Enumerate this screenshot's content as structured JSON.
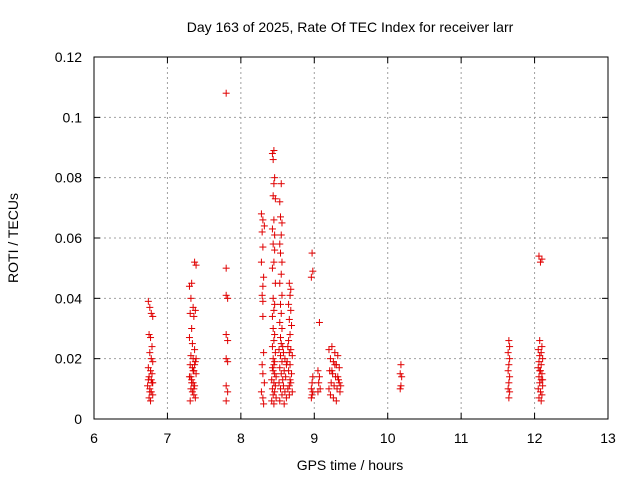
{
  "chart_data": {
    "type": "scatter",
    "title": "Day 163 of 2025, Rate Of TEC Index for receiver larr",
    "xlabel": "GPS time / hours",
    "ylabel": "ROTI / TECUs",
    "xlim": [
      6,
      13
    ],
    "ylim": [
      0,
      0.12
    ],
    "xticks": [
      6,
      7,
      8,
      9,
      10,
      11,
      12,
      13
    ],
    "xtick_labels": [
      "6",
      "7",
      "8",
      "9",
      "10",
      "11",
      "12",
      "13"
    ],
    "yticks": [
      0,
      0.02,
      0.04,
      0.06,
      0.08,
      0.1,
      0.12
    ],
    "ytick_labels": [
      "0",
      "0.02",
      "0.04",
      "0.06",
      "0.08",
      "0.1",
      "0.12"
    ],
    "grid": true,
    "marker": "+",
    "color": "#e00000",
    "series": [
      {
        "name": "ROTI",
        "points": [
          [
            6.74,
            0.039
          ],
          [
            6.76,
            0.037
          ],
          [
            6.78,
            0.035
          ],
          [
            6.8,
            0.034
          ],
          [
            6.75,
            0.028
          ],
          [
            6.77,
            0.027
          ],
          [
            6.79,
            0.024
          ],
          [
            6.76,
            0.022
          ],
          [
            6.78,
            0.02
          ],
          [
            6.8,
            0.019
          ],
          [
            6.74,
            0.017
          ],
          [
            6.77,
            0.016
          ],
          [
            6.79,
            0.015
          ],
          [
            6.75,
            0.014
          ],
          [
            6.78,
            0.013
          ],
          [
            6.8,
            0.012
          ],
          [
            6.73,
            0.011
          ],
          [
            6.76,
            0.01
          ],
          [
            6.78,
            0.009
          ],
          [
            6.8,
            0.008
          ],
          [
            6.75,
            0.007
          ],
          [
            6.77,
            0.006
          ],
          [
            6.79,
            0.012
          ],
          [
            6.74,
            0.013
          ],
          [
            6.76,
            0.009
          ],
          [
            7.3,
            0.044
          ],
          [
            7.33,
            0.045
          ],
          [
            7.37,
            0.052
          ],
          [
            7.39,
            0.051
          ],
          [
            7.32,
            0.04
          ],
          [
            7.35,
            0.037
          ],
          [
            7.38,
            0.036
          ],
          [
            7.31,
            0.035
          ],
          [
            7.36,
            0.034
          ],
          [
            7.33,
            0.03
          ],
          [
            7.3,
            0.027
          ],
          [
            7.34,
            0.025
          ],
          [
            7.37,
            0.023
          ],
          [
            7.32,
            0.021
          ],
          [
            7.35,
            0.02
          ],
          [
            7.38,
            0.019
          ],
          [
            7.31,
            0.018
          ],
          [
            7.34,
            0.017
          ],
          [
            7.36,
            0.016
          ],
          [
            7.39,
            0.015
          ],
          [
            7.3,
            0.014
          ],
          [
            7.33,
            0.013
          ],
          [
            7.35,
            0.012
          ],
          [
            7.37,
            0.011
          ],
          [
            7.32,
            0.01
          ],
          [
            7.34,
            0.009
          ],
          [
            7.36,
            0.008
          ],
          [
            7.38,
            0.007
          ],
          [
            7.31,
            0.006
          ],
          [
            7.33,
            0.012
          ],
          [
            7.35,
            0.016
          ],
          [
            7.37,
            0.018
          ],
          [
            7.39,
            0.02
          ],
          [
            7.32,
            0.014
          ],
          [
            7.36,
            0.01
          ],
          [
            7.8,
            0.108
          ],
          [
            7.8,
            0.05
          ],
          [
            7.8,
            0.041
          ],
          [
            7.82,
            0.04
          ],
          [
            7.8,
            0.028
          ],
          [
            7.82,
            0.026
          ],
          [
            7.8,
            0.02
          ],
          [
            7.82,
            0.019
          ],
          [
            7.8,
            0.011
          ],
          [
            7.82,
            0.009
          ],
          [
            7.8,
            0.006
          ],
          [
            8.28,
            0.068
          ],
          [
            8.3,
            0.066
          ],
          [
            8.32,
            0.064
          ],
          [
            8.29,
            0.062
          ],
          [
            8.3,
            0.057
          ],
          [
            8.28,
            0.052
          ],
          [
            8.31,
            0.047
          ],
          [
            8.3,
            0.044
          ],
          [
            8.29,
            0.041
          ],
          [
            8.3,
            0.039
          ],
          [
            8.3,
            0.034
          ],
          [
            8.31,
            0.022
          ],
          [
            8.29,
            0.018
          ],
          [
            8.3,
            0.015
          ],
          [
            8.32,
            0.012
          ],
          [
            8.28,
            0.009
          ],
          [
            8.3,
            0.007
          ],
          [
            8.31,
            0.005
          ],
          [
            8.43,
            0.088
          ],
          [
            8.45,
            0.089
          ],
          [
            8.44,
            0.086
          ],
          [
            8.46,
            0.08
          ],
          [
            8.45,
            0.078
          ],
          [
            8.44,
            0.074
          ],
          [
            8.47,
            0.073
          ],
          [
            8.45,
            0.066
          ],
          [
            8.43,
            0.063
          ],
          [
            8.46,
            0.061
          ],
          [
            8.44,
            0.058
          ],
          [
            8.46,
            0.056
          ],
          [
            8.45,
            0.052
          ],
          [
            8.43,
            0.05
          ],
          [
            8.47,
            0.045
          ],
          [
            8.44,
            0.04
          ],
          [
            8.46,
            0.038
          ],
          [
            8.45,
            0.036
          ],
          [
            8.43,
            0.034
          ],
          [
            8.44,
            0.03
          ],
          [
            8.46,
            0.028
          ],
          [
            8.45,
            0.026
          ],
          [
            8.43,
            0.024
          ],
          [
            8.47,
            0.022
          ],
          [
            8.44,
            0.02
          ],
          [
            8.46,
            0.019
          ],
          [
            8.45,
            0.018
          ],
          [
            8.43,
            0.017
          ],
          [
            8.44,
            0.016
          ],
          [
            8.46,
            0.015
          ],
          [
            8.48,
            0.014
          ],
          [
            8.42,
            0.013
          ],
          [
            8.45,
            0.012
          ],
          [
            8.47,
            0.011
          ],
          [
            8.43,
            0.01
          ],
          [
            8.46,
            0.009
          ],
          [
            8.44,
            0.008
          ],
          [
            8.48,
            0.007
          ],
          [
            8.42,
            0.006
          ],
          [
            8.45,
            0.005
          ],
          [
            8.55,
            0.078
          ],
          [
            8.53,
            0.072
          ],
          [
            8.54,
            0.067
          ],
          [
            8.56,
            0.065
          ],
          [
            8.55,
            0.061
          ],
          [
            8.53,
            0.058
          ],
          [
            8.54,
            0.055
          ],
          [
            8.56,
            0.052
          ],
          [
            8.55,
            0.048
          ],
          [
            8.53,
            0.045
          ],
          [
            8.56,
            0.041
          ],
          [
            8.54,
            0.038
          ],
          [
            8.55,
            0.035
          ],
          [
            8.53,
            0.032
          ],
          [
            8.56,
            0.03
          ],
          [
            8.54,
            0.027
          ],
          [
            8.55,
            0.025
          ],
          [
            8.57,
            0.024
          ],
          [
            8.52,
            0.023
          ],
          [
            8.58,
            0.022
          ],
          [
            8.54,
            0.021
          ],
          [
            8.6,
            0.02
          ],
          [
            8.56,
            0.019
          ],
          [
            8.62,
            0.018
          ],
          [
            8.53,
            0.017
          ],
          [
            8.59,
            0.016
          ],
          [
            8.55,
            0.015
          ],
          [
            8.61,
            0.014
          ],
          [
            8.57,
            0.013
          ],
          [
            8.52,
            0.012
          ],
          [
            8.58,
            0.011
          ],
          [
            8.54,
            0.01
          ],
          [
            8.6,
            0.009
          ],
          [
            8.56,
            0.008
          ],
          [
            8.62,
            0.007
          ],
          [
            8.53,
            0.006
          ],
          [
            8.59,
            0.005
          ],
          [
            8.64,
            0.024
          ],
          [
            8.66,
            0.022
          ],
          [
            8.63,
            0.019
          ],
          [
            8.65,
            0.016
          ],
          [
            8.67,
            0.013
          ],
          [
            8.64,
            0.01
          ],
          [
            8.66,
            0.008
          ],
          [
            8.68,
            0.012
          ],
          [
            8.66,
            0.045
          ],
          [
            8.68,
            0.043
          ],
          [
            8.67,
            0.041
          ],
          [
            8.65,
            0.038
          ],
          [
            8.68,
            0.036
          ],
          [
            8.66,
            0.033
          ],
          [
            8.69,
            0.031
          ],
          [
            8.67,
            0.028
          ],
          [
            8.65,
            0.026
          ],
          [
            8.68,
            0.023
          ],
          [
            8.7,
            0.021
          ],
          [
            8.67,
            0.018
          ],
          [
            8.69,
            0.015
          ],
          [
            8.66,
            0.011
          ],
          [
            8.7,
            0.009
          ],
          [
            8.97,
            0.055
          ],
          [
            8.98,
            0.049
          ],
          [
            8.96,
            0.047
          ],
          [
            8.98,
            0.014
          ],
          [
            8.97,
            0.012
          ],
          [
            8.96,
            0.01
          ],
          [
            8.98,
            0.009
          ],
          [
            8.97,
            0.008
          ],
          [
            8.96,
            0.007
          ],
          [
            9.07,
            0.032
          ],
          [
            9.05,
            0.016
          ],
          [
            9.07,
            0.014
          ],
          [
            9.06,
            0.012
          ],
          [
            9.08,
            0.01
          ],
          [
            9.05,
            0.009
          ],
          [
            9.2,
            0.023
          ],
          [
            9.24,
            0.024
          ],
          [
            9.28,
            0.022
          ],
          [
            9.32,
            0.021
          ],
          [
            9.22,
            0.02
          ],
          [
            9.26,
            0.019
          ],
          [
            9.3,
            0.018
          ],
          [
            9.34,
            0.017
          ],
          [
            9.21,
            0.016
          ],
          [
            9.25,
            0.015
          ],
          [
            9.29,
            0.014
          ],
          [
            9.33,
            0.013
          ],
          [
            9.23,
            0.012
          ],
          [
            9.27,
            0.011
          ],
          [
            9.31,
            0.01
          ],
          [
            9.35,
            0.009
          ],
          [
            9.22,
            0.008
          ],
          [
            9.26,
            0.007
          ],
          [
            9.3,
            0.006
          ],
          [
            9.34,
            0.012
          ],
          [
            9.24,
            0.016
          ],
          [
            9.28,
            0.018
          ],
          [
            9.32,
            0.014
          ],
          [
            9.2,
            0.01
          ],
          [
            9.36,
            0.011
          ],
          [
            10.18,
            0.018
          ],
          [
            10.17,
            0.015
          ],
          [
            10.19,
            0.014
          ],
          [
            10.18,
            0.011
          ],
          [
            10.17,
            0.01
          ],
          [
            11.65,
            0.026
          ],
          [
            11.66,
            0.024
          ],
          [
            11.64,
            0.022
          ],
          [
            11.66,
            0.02
          ],
          [
            11.65,
            0.018
          ],
          [
            11.64,
            0.016
          ],
          [
            11.66,
            0.014
          ],
          [
            11.65,
            0.012
          ],
          [
            11.64,
            0.01
          ],
          [
            11.66,
            0.009
          ],
          [
            11.65,
            0.007
          ],
          [
            12.06,
            0.054
          ],
          [
            12.08,
            0.052
          ],
          [
            12.1,
            0.053
          ],
          [
            12.07,
            0.026
          ],
          [
            12.1,
            0.024
          ],
          [
            12.05,
            0.023
          ],
          [
            12.09,
            0.022
          ],
          [
            12.07,
            0.021
          ],
          [
            12.11,
            0.02
          ],
          [
            12.06,
            0.019
          ],
          [
            12.09,
            0.018
          ],
          [
            12.05,
            0.017
          ],
          [
            12.08,
            0.016
          ],
          [
            12.1,
            0.015
          ],
          [
            12.06,
            0.014
          ],
          [
            12.09,
            0.013
          ],
          [
            12.07,
            0.012
          ],
          [
            12.11,
            0.011
          ],
          [
            12.05,
            0.01
          ],
          [
            12.08,
            0.009
          ],
          [
            12.1,
            0.008
          ],
          [
            12.06,
            0.007
          ],
          [
            12.09,
            0.006
          ],
          [
            12.07,
            0.016
          ],
          [
            12.11,
            0.013
          ]
        ]
      }
    ]
  }
}
